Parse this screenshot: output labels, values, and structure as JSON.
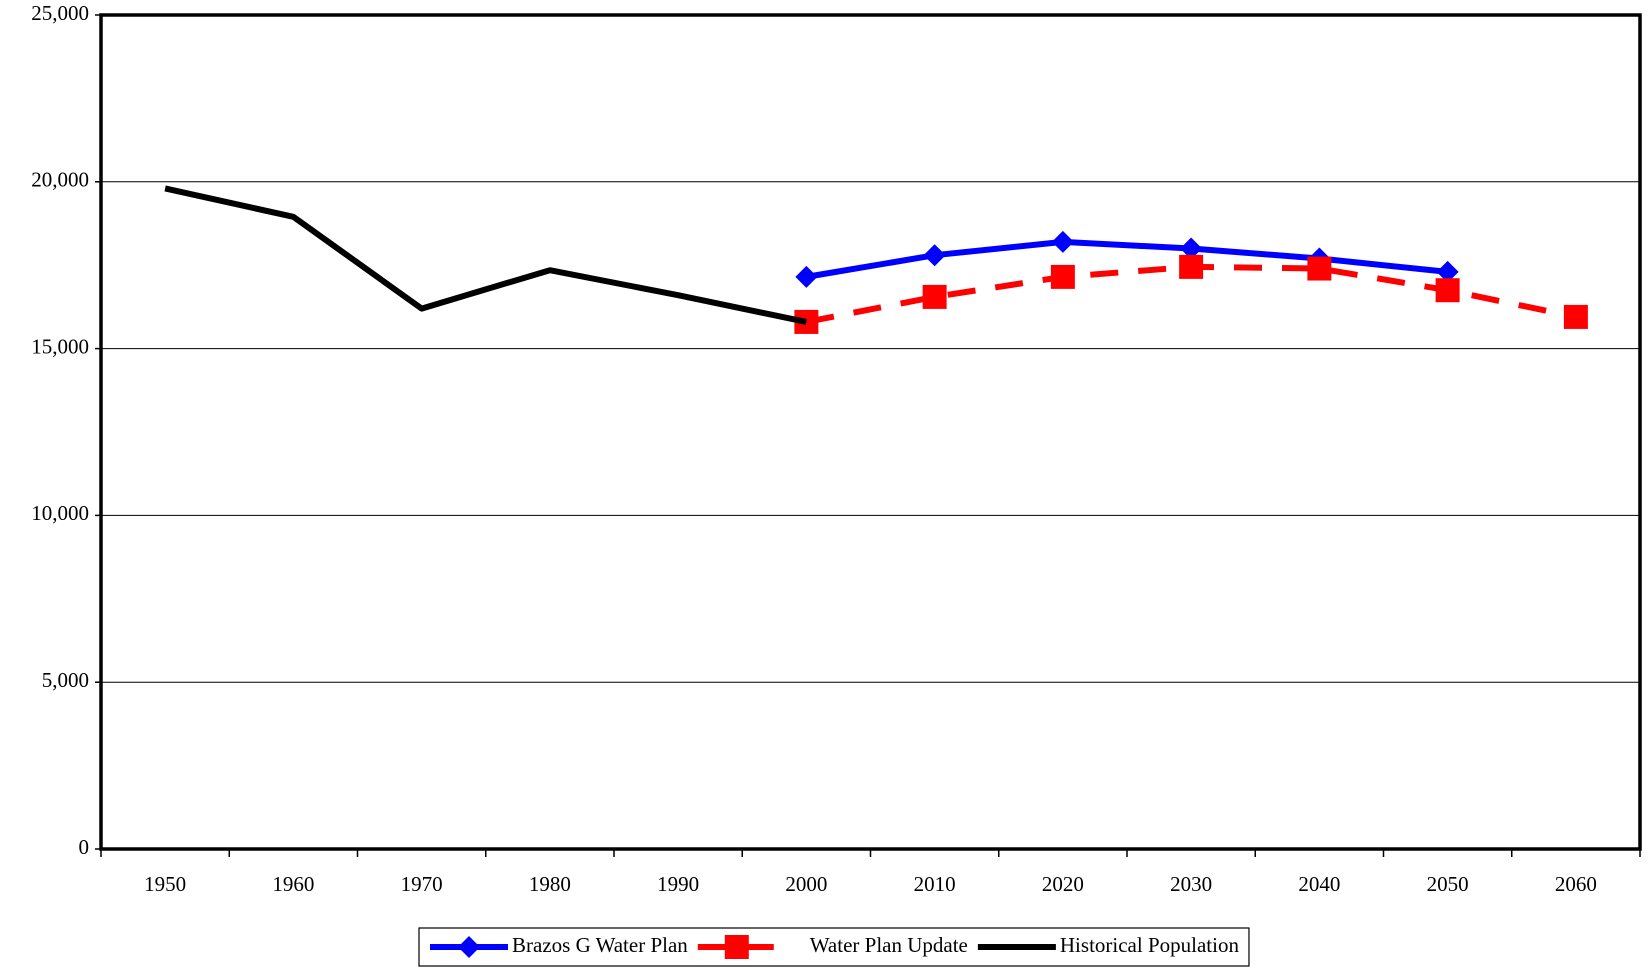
{
  "chart_data": {
    "type": "line",
    "categories": [
      "1950",
      "1960",
      "1970",
      "1980",
      "1990",
      "2000",
      "2010",
      "2020",
      "2030",
      "2040",
      "2050",
      "2060"
    ],
    "series": [
      {
        "name": "Brazos G Water Plan",
        "color": "#0000ff",
        "marker": "diamond",
        "dash": false,
        "values": [
          null,
          null,
          null,
          null,
          null,
          17150,
          17800,
          18200,
          18000,
          17700,
          17300,
          null
        ]
      },
      {
        "name": "Water Plan Update",
        "color": "#ff0000",
        "marker": "square",
        "dash": true,
        "values": [
          null,
          null,
          null,
          null,
          null,
          15800,
          16550,
          17150,
          17450,
          17400,
          16750,
          15950
        ]
      },
      {
        "name": "Historical Population",
        "color": "#000000",
        "marker": "none",
        "dash": false,
        "values": [
          19800,
          18950,
          16200,
          17350,
          16600,
          15800,
          null,
          null,
          null,
          null,
          null,
          null
        ]
      }
    ],
    "ylim": [
      0,
      25000
    ],
    "yticks": [
      0,
      {
        "value": 5000,
        "label": "5,000"
      },
      {
        "value": 10000,
        "label": "10,000"
      },
      {
        "value": 15000,
        "label": "15,000"
      },
      {
        "value": 20000,
        "label": "20,000"
      },
      {
        "value": 25000,
        "label": "25,000"
      }
    ],
    "grid": true,
    "legend": "bottom"
  }
}
